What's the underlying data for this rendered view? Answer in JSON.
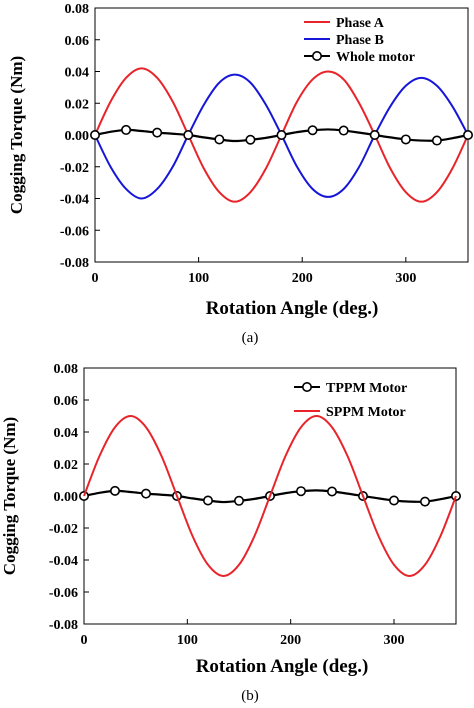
{
  "chart_data": [
    {
      "type": "line",
      "caption": "(a)",
      "xlabel": "Rotation Angle (deg.)",
      "ylabel": "Cogging Torque (Nm)",
      "xlim": [
        0,
        360
      ],
      "ylim": [
        -0.08,
        0.08
      ],
      "x_ticks": [
        "0",
        "100",
        "200",
        "300"
      ],
      "y_ticks": [
        "0.08",
        "0.06",
        "0.04",
        "0.02",
        "0.00",
        "-0.02",
        "-0.04",
        "-0.06",
        "-0.08"
      ],
      "grid": false,
      "legend_position": "top-right",
      "series": [
        {
          "name": "Phase A",
          "color": "#e8242a",
          "marker": "none",
          "x": [
            0,
            15,
            30,
            45,
            60,
            75,
            90,
            105,
            120,
            135,
            150,
            165,
            180,
            195,
            210,
            225,
            240,
            255,
            270,
            285,
            300,
            315,
            330,
            345,
            360
          ],
          "y": [
            0,
            0.021,
            0.036,
            0.042,
            0.036,
            0.021,
            0,
            -0.021,
            -0.036,
            -0.042,
            -0.036,
            -0.021,
            0,
            0.021,
            0.035,
            0.04,
            0.035,
            0.02,
            0,
            -0.021,
            -0.036,
            -0.042,
            -0.036,
            -0.021,
            0
          ]
        },
        {
          "name": "Phase B",
          "color": "#1616d8",
          "marker": "none",
          "x": [
            0,
            15,
            30,
            45,
            60,
            75,
            90,
            105,
            120,
            135,
            150,
            165,
            180,
            195,
            210,
            225,
            240,
            255,
            270,
            285,
            300,
            315,
            330,
            345,
            360
          ],
          "y": [
            0,
            -0.02,
            -0.034,
            -0.04,
            -0.034,
            -0.02,
            0,
            0.019,
            0.033,
            0.038,
            0.033,
            0.019,
            0,
            -0.02,
            -0.034,
            -0.039,
            -0.034,
            -0.02,
            0,
            0.018,
            0.031,
            0.036,
            0.031,
            0.018,
            0
          ]
        },
        {
          "name": "Whole motor",
          "color": "#000000",
          "marker": "circle",
          "x": [
            0,
            15,
            30,
            45,
            60,
            75,
            90,
            105,
            120,
            135,
            150,
            165,
            180,
            195,
            210,
            225,
            240,
            255,
            270,
            285,
            300,
            315,
            330,
            345,
            360
          ],
          "y": [
            0,
            0.002,
            0.0032,
            0.0025,
            0.0015,
            0.0008,
            0,
            -0.0015,
            -0.0028,
            -0.0038,
            -0.003,
            -0.0018,
            0,
            0.0018,
            0.003,
            0.0035,
            0.0028,
            0.0015,
            0,
            -0.0015,
            -0.0028,
            -0.0035,
            -0.0035,
            -0.002,
            0
          ]
        }
      ]
    },
    {
      "type": "line",
      "caption": "(b)",
      "xlabel": "Rotation Angle (deg.)",
      "ylabel": "Cogging Torque (Nm)",
      "xlim": [
        0,
        360
      ],
      "ylim": [
        -0.08,
        0.08
      ],
      "x_ticks": [
        "0",
        "100",
        "200",
        "300"
      ],
      "y_ticks": [
        "0.08",
        "0.06",
        "0.04",
        "0.02",
        "0.00",
        "-0.02",
        "-0.04",
        "-0.06",
        "-0.08"
      ],
      "grid": false,
      "legend_position": "top-right",
      "series": [
        {
          "name": "TPPM Motor",
          "color": "#000000",
          "marker": "circle",
          "x": [
            0,
            15,
            30,
            45,
            60,
            75,
            90,
            105,
            120,
            135,
            150,
            165,
            180,
            195,
            210,
            225,
            240,
            255,
            270,
            285,
            300,
            315,
            330,
            345,
            360
          ],
          "y": [
            0,
            0.002,
            0.0032,
            0.0025,
            0.0015,
            0.0008,
            0,
            -0.0015,
            -0.0028,
            -0.0038,
            -0.003,
            -0.0018,
            0,
            0.0018,
            0.003,
            0.0035,
            0.0028,
            0.0015,
            0,
            -0.0015,
            -0.0028,
            -0.0035,
            -0.0035,
            -0.002,
            0
          ]
        },
        {
          "name": "SPPM Motor",
          "color": "#e8242a",
          "marker": "none",
          "x": [
            0,
            15,
            30,
            45,
            60,
            75,
            90,
            105,
            120,
            135,
            150,
            165,
            180,
            195,
            210,
            225,
            240,
            255,
            270,
            285,
            300,
            315,
            330,
            345,
            360
          ],
          "y": [
            0,
            0.025,
            0.043,
            0.05,
            0.043,
            0.025,
            0,
            -0.025,
            -0.043,
            -0.05,
            -0.043,
            -0.025,
            0,
            0.025,
            0.043,
            0.05,
            0.043,
            0.025,
            0,
            -0.025,
            -0.043,
            -0.05,
            -0.043,
            -0.025,
            0
          ]
        }
      ]
    }
  ]
}
